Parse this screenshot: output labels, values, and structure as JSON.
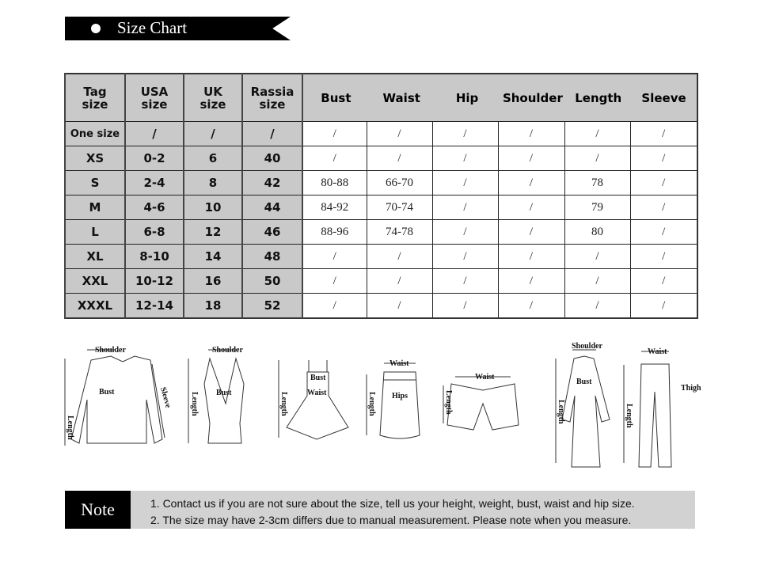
{
  "banner": {
    "title": "Size Chart"
  },
  "table": {
    "left_headers": [
      [
        "Tag",
        "size"
      ],
      [
        "USA",
        "size"
      ],
      [
        "UK",
        "size"
      ],
      [
        "Rassia",
        "size"
      ]
    ],
    "measure_headers": [
      "Bust",
      "Waist",
      "Hip",
      "Shoulder",
      "Length",
      "Sleeve"
    ],
    "rows": [
      {
        "tag": "One size",
        "usa": "/",
        "uk": "/",
        "ru": "/",
        "m": [
          "/",
          "/",
          "/",
          "/",
          "/",
          "/"
        ]
      },
      {
        "tag": "XS",
        "usa": "0-2",
        "uk": "6",
        "ru": "40",
        "m": [
          "/",
          "/",
          "/",
          "/",
          "/",
          "/"
        ]
      },
      {
        "tag": "S",
        "usa": "2-4",
        "uk": "8",
        "ru": "42",
        "m": [
          "80-88",
          "66-70",
          "/",
          "/",
          "78",
          "/"
        ]
      },
      {
        "tag": "M",
        "usa": "4-6",
        "uk": "10",
        "ru": "44",
        "m": [
          "84-92",
          "70-74",
          "/",
          "/",
          "79",
          "/"
        ]
      },
      {
        "tag": "L",
        "usa": "6-8",
        "uk": "12",
        "ru": "46",
        "m": [
          "88-96",
          "74-78",
          "/",
          "/",
          "80",
          "/"
        ]
      },
      {
        "tag": "XL",
        "usa": "8-10",
        "uk": "14",
        "ru": "48",
        "m": [
          "/",
          "/",
          "/",
          "/",
          "/",
          "/"
        ]
      },
      {
        "tag": "XXL",
        "usa": "10-12",
        "uk": "16",
        "ru": "50",
        "m": [
          "/",
          "/",
          "/",
          "/",
          "/",
          "/"
        ]
      },
      {
        "tag": "XXXL",
        "usa": "12-14",
        "uk": "18",
        "ru": "52",
        "m": [
          "/",
          "/",
          "/",
          "/",
          "/",
          "/"
        ]
      }
    ]
  },
  "illustrations": {
    "labels": {
      "shoulder": "Shoulder",
      "bust": "Bust",
      "length": "Length",
      "sleeve": "Sleeve",
      "waist": "Waist",
      "hips": "Hips",
      "thigh": "Thigh"
    }
  },
  "note": {
    "label": "Note",
    "lines": [
      "1. Contact us if you are not sure about the size, tell us your height, weight, bust, waist and hip size.",
      "2. The size may have 2-3cm differs due to manual measurement. Please note when you measure."
    ]
  }
}
